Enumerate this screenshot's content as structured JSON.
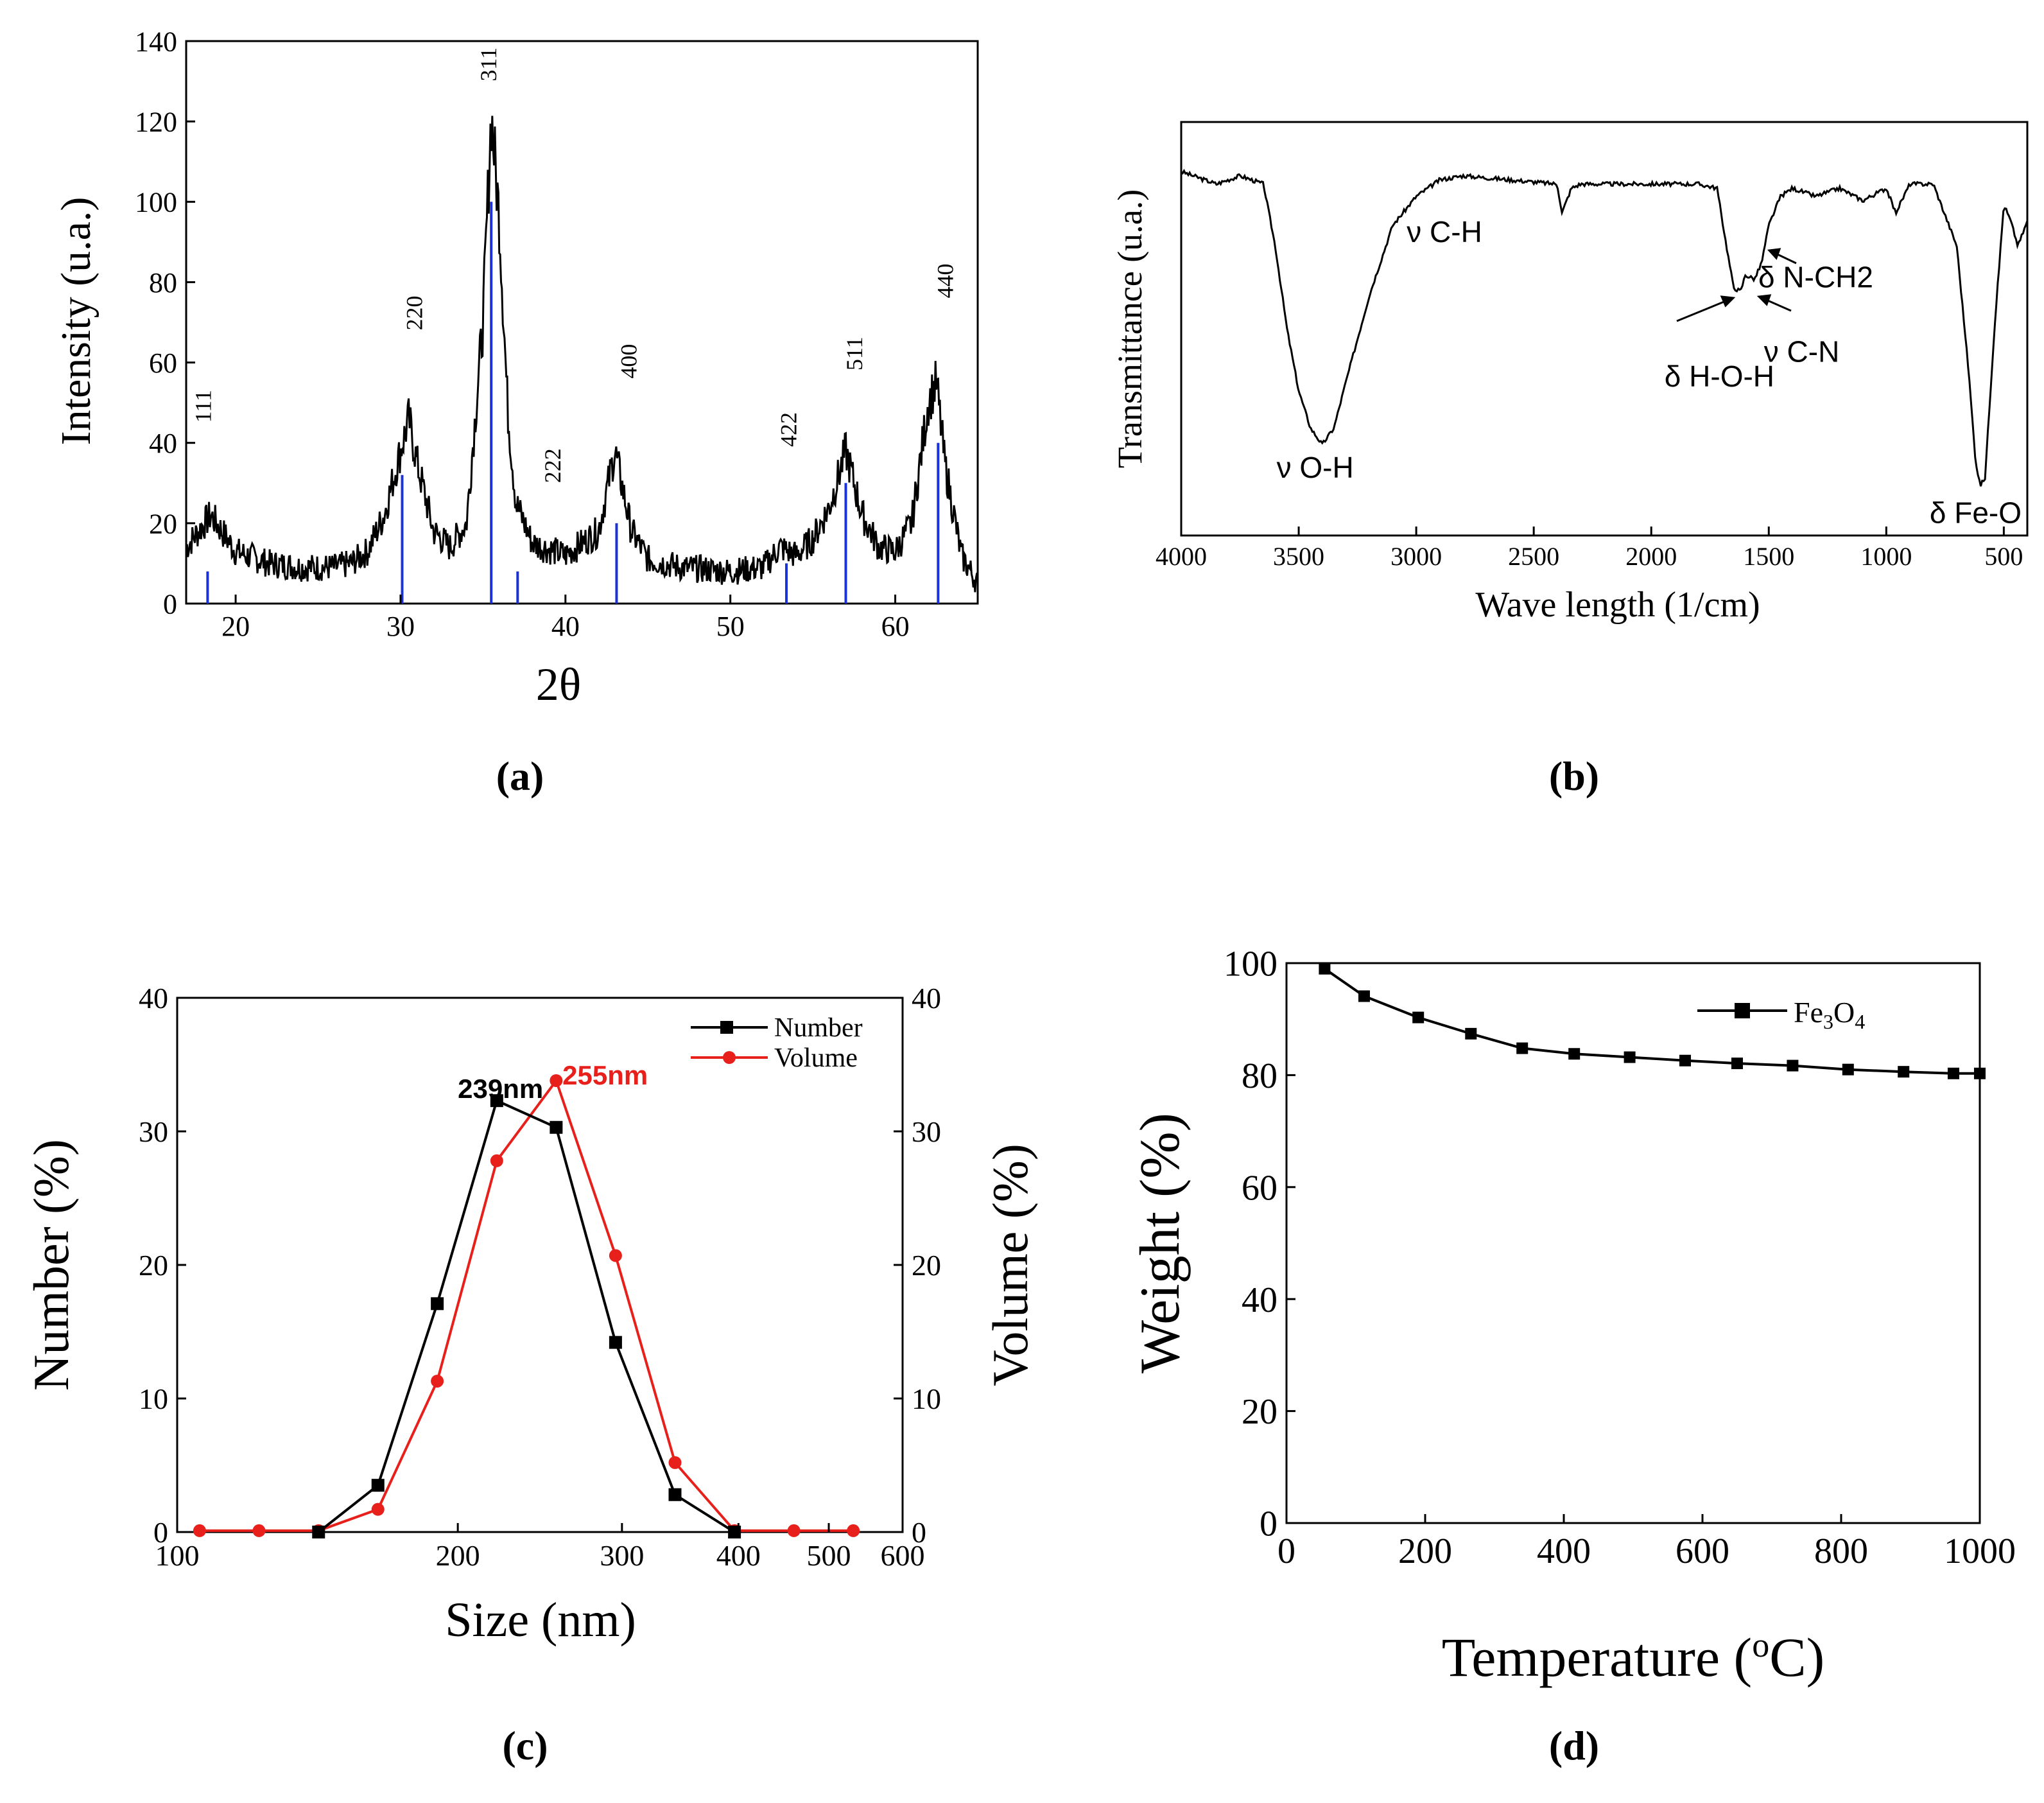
{
  "panel_labels": [
    "(a)",
    "(b)",
    "(c)",
    "(d)"
  ],
  "chart_data": [
    {
      "id": "a",
      "type": "line",
      "title": "",
      "xlabel": "2θ",
      "ylabel": "Intensity (u.a.)",
      "xlim": [
        17,
        65
      ],
      "ylim": [
        0,
        140
      ],
      "xticks": [
        20,
        30,
        40,
        50,
        60
      ],
      "yticks": [
        0,
        20,
        40,
        60,
        80,
        100,
        120,
        140
      ],
      "series": [
        {
          "name": "XRD pattern",
          "color": "#000000",
          "x": [
            17,
            18.5,
            20,
            22,
            24,
            26,
            27,
            28,
            29,
            30,
            30.5,
            31,
            32,
            33,
            34,
            35,
            35.5,
            36,
            36.5,
            37,
            38,
            40,
            42,
            43,
            44,
            45,
            47,
            50,
            52,
            53,
            54,
            55,
            56,
            57,
            58,
            59,
            60,
            61,
            62,
            62.5,
            63,
            64,
            65
          ],
          "y": [
            14,
            22,
            13,
            10,
            9,
            9,
            10,
            13,
            22,
            38,
            46,
            35,
            18,
            14,
            20,
            70,
            122,
            95,
            48,
            25,
            15,
            12,
            18,
            38,
            18,
            11,
            9,
            8,
            9,
            14,
            12,
            16,
            24,
            38,
            22,
            14,
            13,
            20,
            50,
            55,
            35,
            12,
            5
          ]
        }
      ],
      "reference_lines": {
        "color": "#1a32d8",
        "x": [
          18.3,
          30.1,
          35.5,
          37.1,
          43.1,
          53.4,
          57.0,
          62.6
        ],
        "y": [
          8,
          32,
          100,
          8,
          20,
          10,
          30,
          40
        ]
      },
      "annotations": [
        {
          "text": "111",
          "x": 18.5,
          "y": 45
        },
        {
          "text": "220",
          "x": 31.3,
          "y": 68
        },
        {
          "text": "311",
          "x": 35.8,
          "y": 130
        },
        {
          "text": "222",
          "x": 39.7,
          "y": 30
        },
        {
          "text": "400",
          "x": 44.3,
          "y": 56
        },
        {
          "text": "422",
          "x": 54.0,
          "y": 39
        },
        {
          "text": "511",
          "x": 58.0,
          "y": 58
        },
        {
          "text": "440",
          "x": 63.5,
          "y": 76
        }
      ]
    },
    {
      "id": "b",
      "type": "line",
      "title": "",
      "xlabel": "Wave length (1/cm)",
      "ylabel": "Transmittance (u.a.)",
      "xlim": [
        4000,
        400
      ],
      "ylim": [
        0,
        100
      ],
      "xticks": [
        4000,
        3500,
        3000,
        2500,
        2000,
        1500,
        1000,
        500
      ],
      "yticks": [],
      "series": [
        {
          "name": "FTIR spectrum",
          "color": "#000000",
          "x": [
            4000,
            3850,
            3750,
            3650,
            3600,
            3550,
            3500,
            3450,
            3400,
            3350,
            3300,
            3200,
            3100,
            3000,
            2900,
            2800,
            2600,
            2400,
            2380,
            2340,
            2300,
            2000,
            1800,
            1720,
            1680,
            1650,
            1620,
            1600,
            1560,
            1530,
            1500,
            1450,
            1400,
            1300,
            1200,
            1100,
            1000,
            960,
            900,
            800,
            700,
            650,
            620,
            600,
            580,
            540,
            500,
            470,
            440,
            400
          ],
          "y": [
            88,
            85,
            87,
            85,
            70,
            50,
            35,
            26,
            22,
            26,
            37,
            58,
            75,
            82,
            86,
            87,
            86,
            85,
            78,
            84,
            85,
            85,
            85,
            84,
            70,
            60,
            59,
            63,
            62,
            66,
            75,
            82,
            84,
            82,
            84,
            81,
            84,
            78,
            85,
            85,
            70,
            40,
            18,
            12,
            14,
            50,
            80,
            76,
            70,
            76
          ]
        }
      ],
      "annotations": [
        {
          "text": "ν O-H",
          "x": 3430,
          "y": 14
        },
        {
          "text": "ν C-H",
          "x": 2880,
          "y": 71
        },
        {
          "text": "δ H-O-H",
          "x": 1710,
          "y": 36
        },
        {
          "text": "ν C-N",
          "x": 1360,
          "y": 42
        },
        {
          "text": "δ N-CH2",
          "x": 1300,
          "y": 60
        },
        {
          "text": "δ Fe-O",
          "x": 620,
          "y": 3
        }
      ]
    },
    {
      "id": "c",
      "type": "line",
      "title": "",
      "xlabel": "Size (nm)",
      "ylabel": "Number (%)",
      "ylabel_right": "Volume (%)",
      "xscale": "log",
      "xlim": [
        100,
        600
      ],
      "ylim": [
        0,
        40
      ],
      "xticks": [
        100,
        200,
        300,
        400,
        500,
        600
      ],
      "yticks": [
        0,
        10,
        20,
        30,
        40
      ],
      "legend": "top-right",
      "series": [
        {
          "name": "Number",
          "color": "#000000",
          "marker": "square",
          "x": [
            141.8,
            164.2,
            190.1,
            220.2,
            255.0,
            295.3,
            342.0,
            396.1
          ],
          "y": [
            0,
            3.5,
            17.1,
            32.3,
            30.3,
            14.2,
            2.8,
            0
          ]
        },
        {
          "name": "Volume",
          "color": "#e8201c",
          "marker": "circle",
          "x": [
            105.7,
            122.4,
            141.8,
            164.2,
            190.1,
            220.2,
            255.0,
            295.3,
            342.0,
            396.1,
            458.7,
            531.2
          ],
          "y": [
            0.1,
            0.1,
            0.1,
            1.7,
            11.3,
            27.8,
            33.8,
            20.7,
            5.2,
            0.1,
            0.1,
            0.1
          ]
        }
      ],
      "annotations": [
        {
          "text": "239nm",
          "x": 200,
          "y": 32.5,
          "color": "#000000"
        },
        {
          "text": "255nm",
          "x": 259,
          "y": 33.5,
          "color": "#e8201c"
        }
      ]
    },
    {
      "id": "d",
      "type": "line",
      "title": "",
      "xlabel": "Temperature (°C)",
      "ylabel": "Weight (%)",
      "xlim": [
        0,
        1000
      ],
      "ylim": [
        0,
        100
      ],
      "xticks": [
        0,
        200,
        400,
        600,
        800,
        1000
      ],
      "yticks": [
        0,
        20,
        40,
        60,
        80,
        100
      ],
      "legend": "top-right",
      "series": [
        {
          "name": "Fe3O4",
          "color": "#000000",
          "marker": "square",
          "x": [
            55,
            112,
            190,
            266,
            340,
            415,
            495,
            575,
            650,
            730,
            810,
            890,
            962,
            1000
          ],
          "y": [
            99.0,
            94.1,
            90.3,
            87.4,
            84.8,
            83.8,
            83.2,
            82.6,
            82.1,
            81.7,
            81.0,
            80.6,
            80.3,
            80.3
          ]
        }
      ]
    }
  ]
}
